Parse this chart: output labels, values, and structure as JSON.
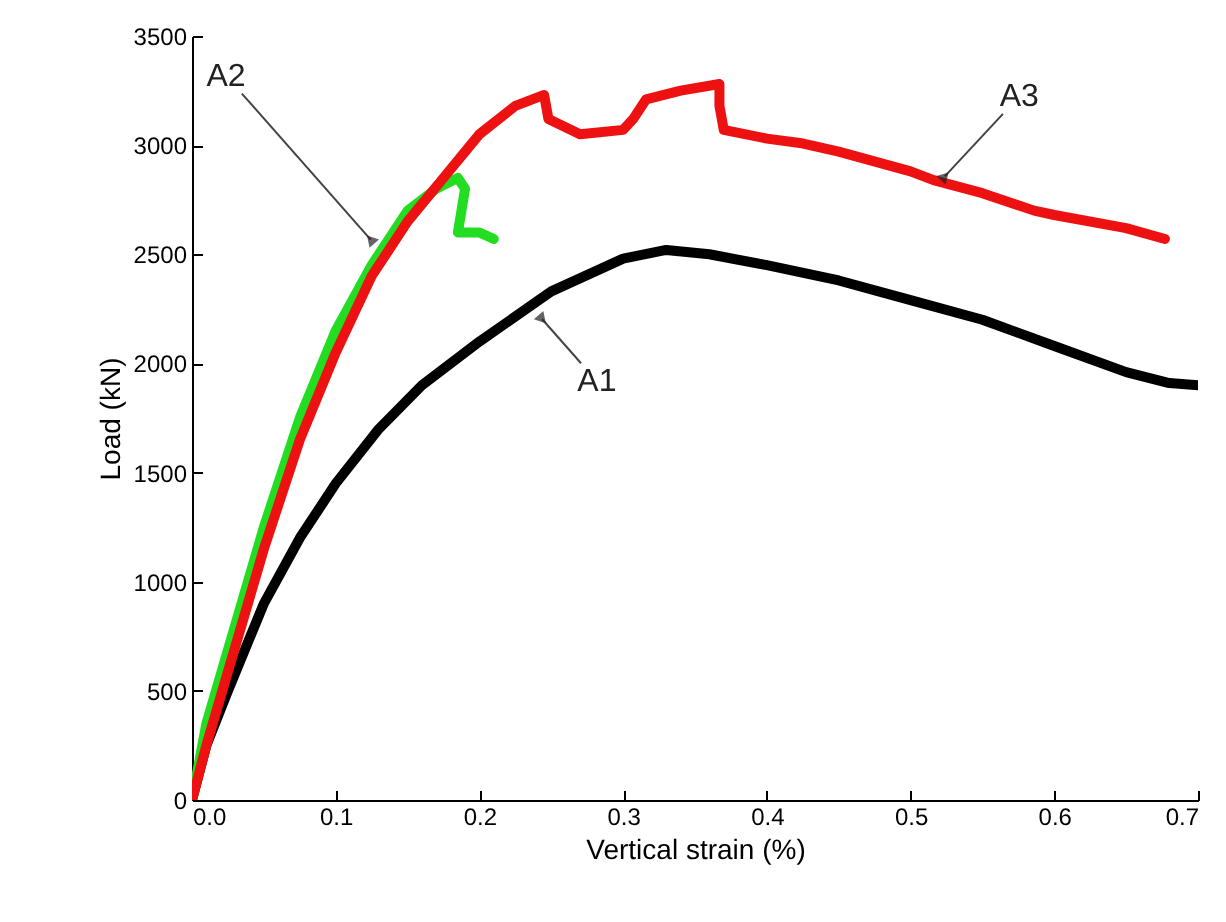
{
  "chart_data": {
    "type": "line",
    "xlabel": "Vertical strain (%)",
    "ylabel": "Load (kN)",
    "xlim": [
      0,
      0.7
    ],
    "xticks": [
      {
        "value": 0,
        "label": "0.0"
      },
      0.1,
      0.2,
      0.3,
      0.4,
      0.5,
      0.6,
      0.7
    ],
    "ylim": [
      0,
      3500
    ],
    "yticks": [
      0,
      500,
      1000,
      1500,
      2000,
      2500,
      3000,
      3500
    ],
    "grid": false,
    "marker": "none",
    "line_style": "solid",
    "annotations": [
      {
        "text": "A1",
        "x": 0.24,
        "y": 2230
      },
      {
        "text": "A2",
        "x": 0.128,
        "y": 2540
      },
      {
        "text": "A3",
        "x": 0.52,
        "y": 2830
      }
    ],
    "series": [
      {
        "color": "#000000",
        "x": [
          0,
          0.01,
          0.025,
          0.05,
          0.075,
          0.1,
          0.13,
          0.16,
          0.2,
          0.25,
          0.3,
          0.33,
          0.36,
          0.4,
          0.45,
          0.5,
          0.55,
          0.6,
          0.65,
          0.68,
          0.7
        ],
        "values": [
          0,
          250,
          500,
          900,
          1200,
          1450,
          1700,
          1900,
          2100,
          2330,
          2480,
          2520,
          2500,
          2450,
          2380,
          2290,
          2200,
          2080,
          1960,
          1910,
          1900
        ]
      },
      {
        "color": "#22dd22",
        "x": [
          0,
          0.01,
          0.03,
          0.05,
          0.075,
          0.1,
          0.125,
          0.15,
          0.17,
          0.185,
          0.19,
          0.185,
          0.2,
          0.21
        ],
        "values": [
          0,
          350,
          800,
          1250,
          1750,
          2150,
          2450,
          2700,
          2800,
          2850,
          2800,
          2600,
          2600,
          2570
        ]
      },
      {
        "color": "#ee1111",
        "x": [
          0,
          0.01,
          0.03,
          0.05,
          0.075,
          0.1,
          0.125,
          0.15,
          0.175,
          0.2,
          0.225,
          0.245,
          0.248,
          0.27,
          0.3,
          0.307,
          0.316,
          0.34,
          0.367,
          0.367,
          0.37,
          0.4,
          0.423,
          0.45,
          0.5,
          0.516,
          0.55,
          0.586,
          0.6,
          0.65,
          0.677
        ],
        "values": [
          0,
          250,
          700,
          1150,
          1650,
          2050,
          2400,
          2650,
          2850,
          3050,
          3180,
          3230,
          3120,
          3050,
          3070,
          3120,
          3210,
          3250,
          3280,
          3180,
          3070,
          3030,
          3010,
          2970,
          2880,
          2840,
          2780,
          2700,
          2680,
          2620,
          2570
        ]
      }
    ]
  }
}
